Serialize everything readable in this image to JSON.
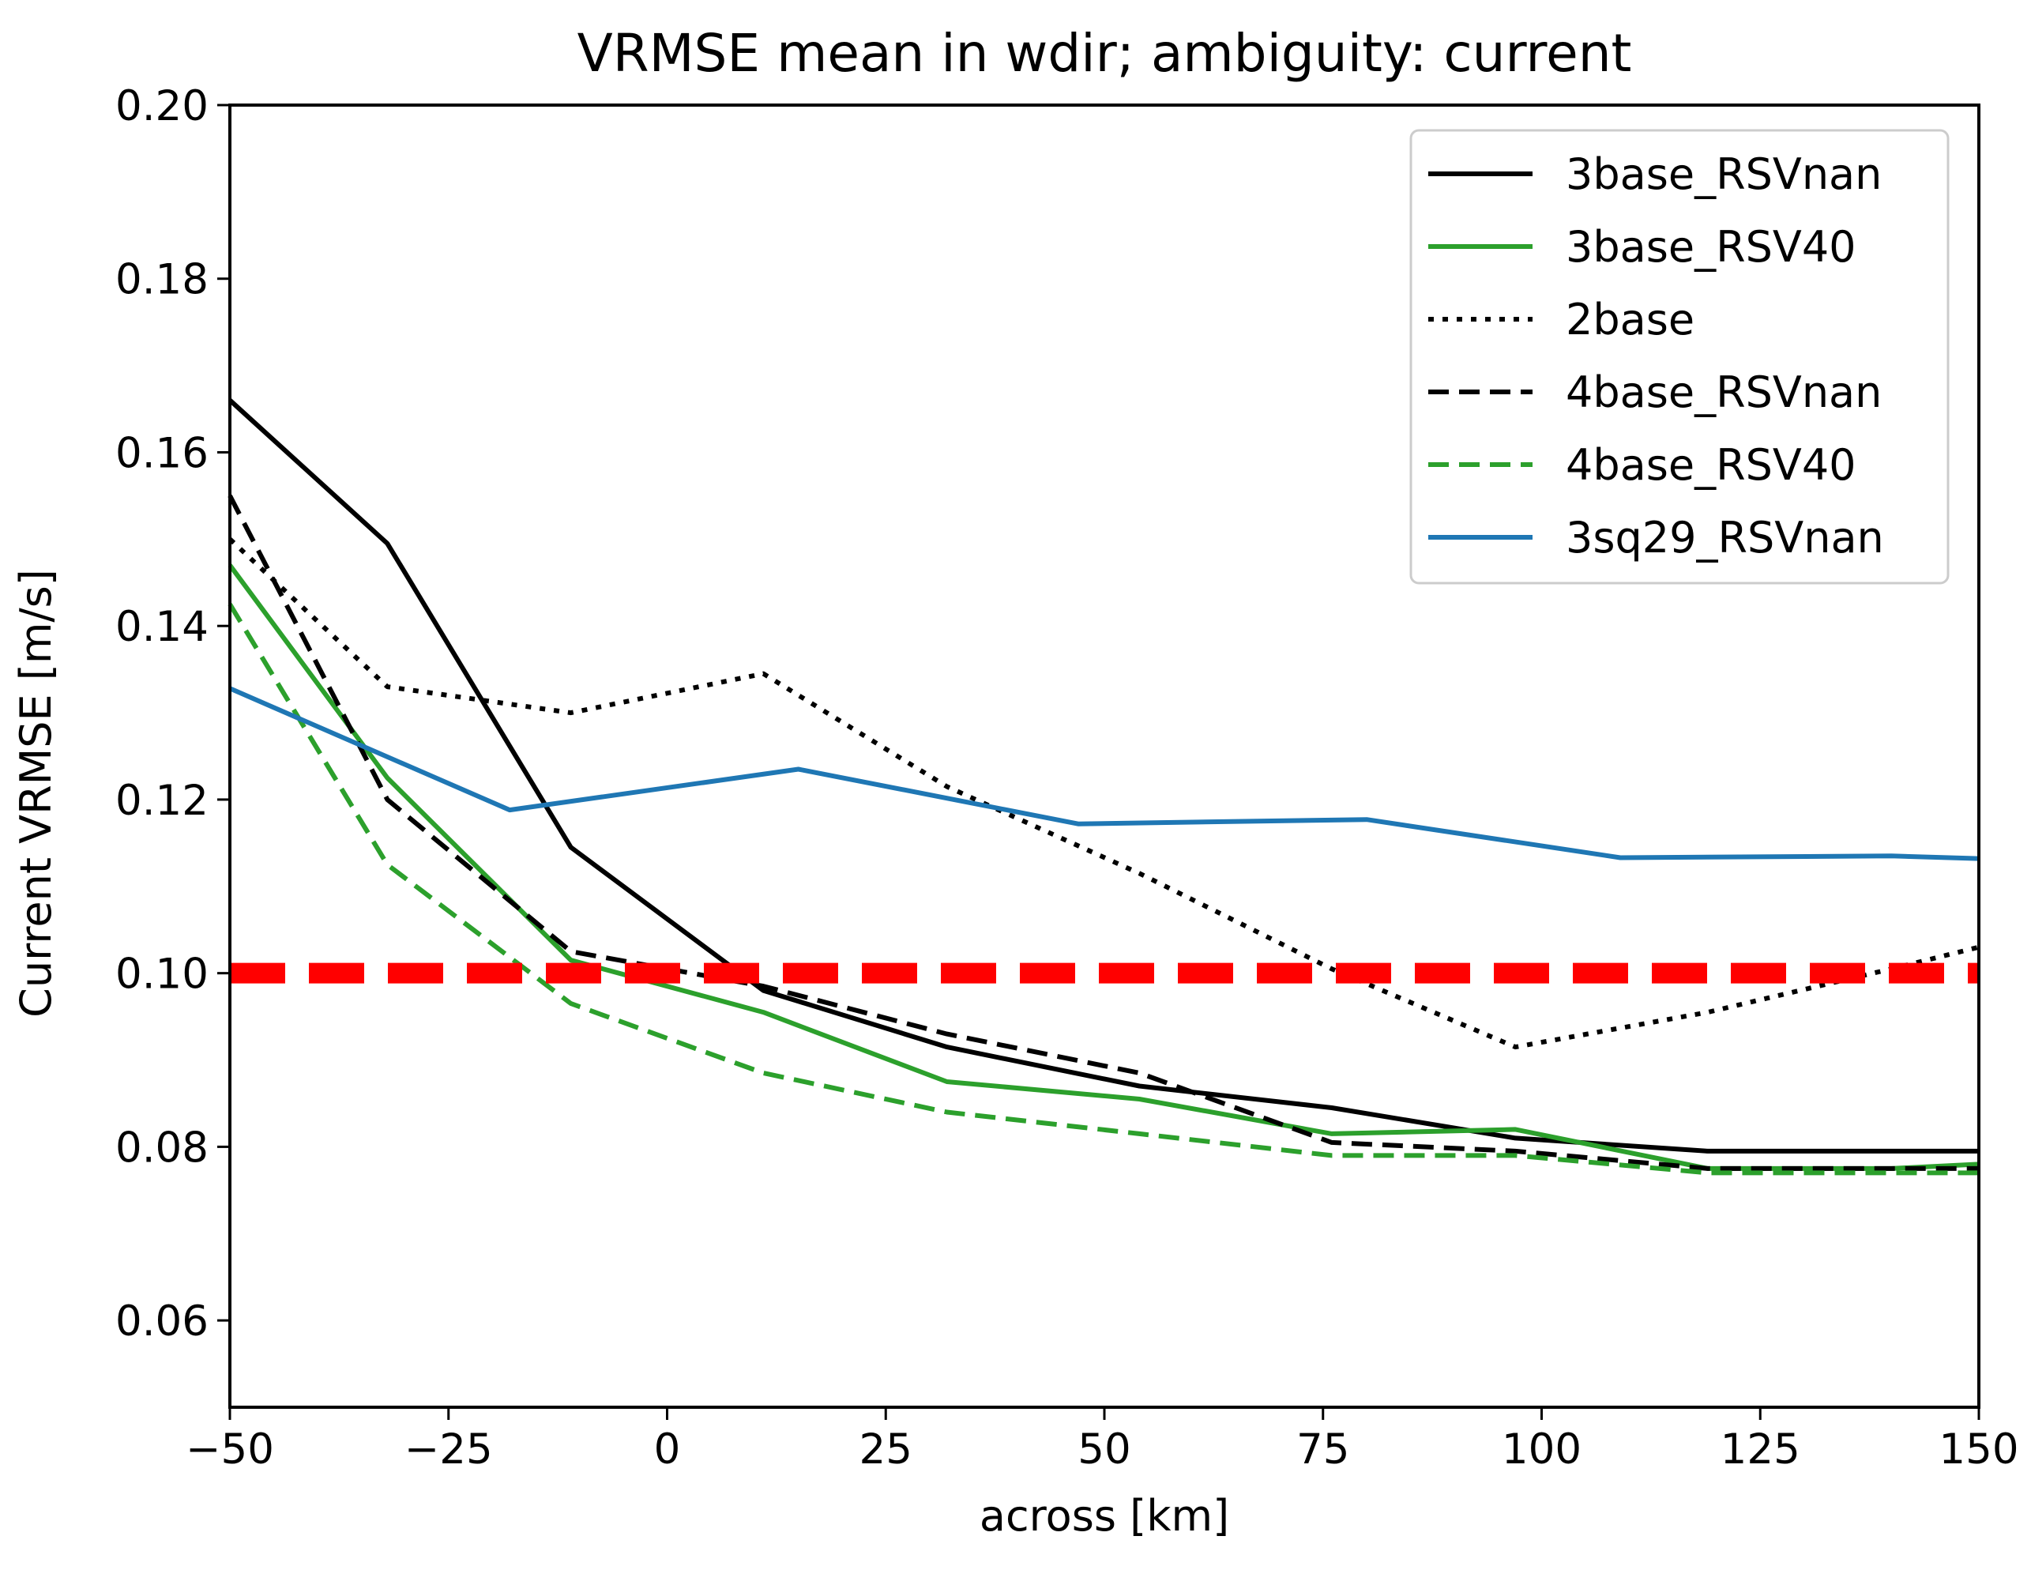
{
  "chart_data": {
    "type": "line",
    "title": "VRMSE mean in wdir; ambiguity: current",
    "xlabel": "across [km]",
    "ylabel": "Current VRMSE [m/s]",
    "xlim": [
      -50,
      150
    ],
    "ylim": [
      0.05,
      0.2
    ],
    "xticks": [
      -50,
      -25,
      0,
      25,
      50,
      75,
      100,
      125,
      150
    ],
    "xtick_labels": [
      "−50",
      "−25",
      "0",
      "25",
      "50",
      "75",
      "100",
      "125",
      "150"
    ],
    "yticks": [
      0.06,
      0.08,
      0.1,
      0.12,
      0.14,
      0.16,
      0.18,
      0.2
    ],
    "ytick_labels": [
      "0.06",
      "0.08",
      "0.10",
      "0.12",
      "0.14",
      "0.16",
      "0.18",
      "0.20"
    ],
    "legend_position": "top-right",
    "threshold": {
      "value": 0.1,
      "color": "#ff0000",
      "style": "dashed"
    },
    "series": [
      {
        "name": "3base_RSVnan",
        "color": "#000000",
        "style": "solid",
        "x": [
          -50,
          -32,
          -11,
          11,
          32,
          54,
          76,
          97,
          119,
          140,
          150
        ],
        "y": [
          0.166,
          0.1495,
          0.1145,
          0.098,
          0.0915,
          0.087,
          0.0845,
          0.081,
          0.0795,
          0.0795,
          0.0795
        ]
      },
      {
        "name": "3base_RSV40",
        "color": "#2ca02c",
        "style": "solid",
        "x": [
          -50,
          -32,
          -11,
          11,
          32,
          54,
          76,
          97,
          119,
          140,
          150
        ],
        "y": [
          0.147,
          0.1225,
          0.1015,
          0.0955,
          0.0875,
          0.0855,
          0.0815,
          0.082,
          0.0775,
          0.0775,
          0.078
        ]
      },
      {
        "name": "2base",
        "color": "#000000",
        "style": "dotted",
        "x": [
          -50,
          -32,
          -11,
          11,
          32,
          54,
          76,
          97,
          119,
          140,
          150
        ],
        "y": [
          0.15,
          0.133,
          0.13,
          0.1345,
          0.1215,
          0.1115,
          0.1005,
          0.0915,
          0.0955,
          0.1005,
          0.103
        ]
      },
      {
        "name": "4base_RSVnan",
        "color": "#000000",
        "style": "dashed",
        "x": [
          -50,
          -32,
          -11,
          11,
          32,
          54,
          76,
          97,
          119,
          140,
          150
        ],
        "y": [
          0.155,
          0.12,
          0.1025,
          0.0985,
          0.093,
          0.0885,
          0.0805,
          0.0795,
          0.0775,
          0.0775,
          0.0775
        ]
      },
      {
        "name": "4base_RSV40",
        "color": "#2ca02c",
        "style": "dashed",
        "x": [
          -50,
          -32,
          -11,
          11,
          32,
          54,
          76,
          97,
          119,
          140,
          150
        ],
        "y": [
          0.1425,
          0.1125,
          0.0965,
          0.0885,
          0.084,
          0.0815,
          0.079,
          0.079,
          0.077,
          0.077,
          0.077
        ]
      },
      {
        "name": "3sq29_RSVnan",
        "color": "#1f77b4",
        "style": "solid",
        "x": [
          -50,
          -18,
          15,
          47,
          80,
          109,
          140,
          150
        ],
        "y": [
          0.1328,
          0.1188,
          0.1235,
          0.1172,
          0.1177,
          0.1133,
          0.1135,
          0.1132
        ]
      }
    ]
  }
}
